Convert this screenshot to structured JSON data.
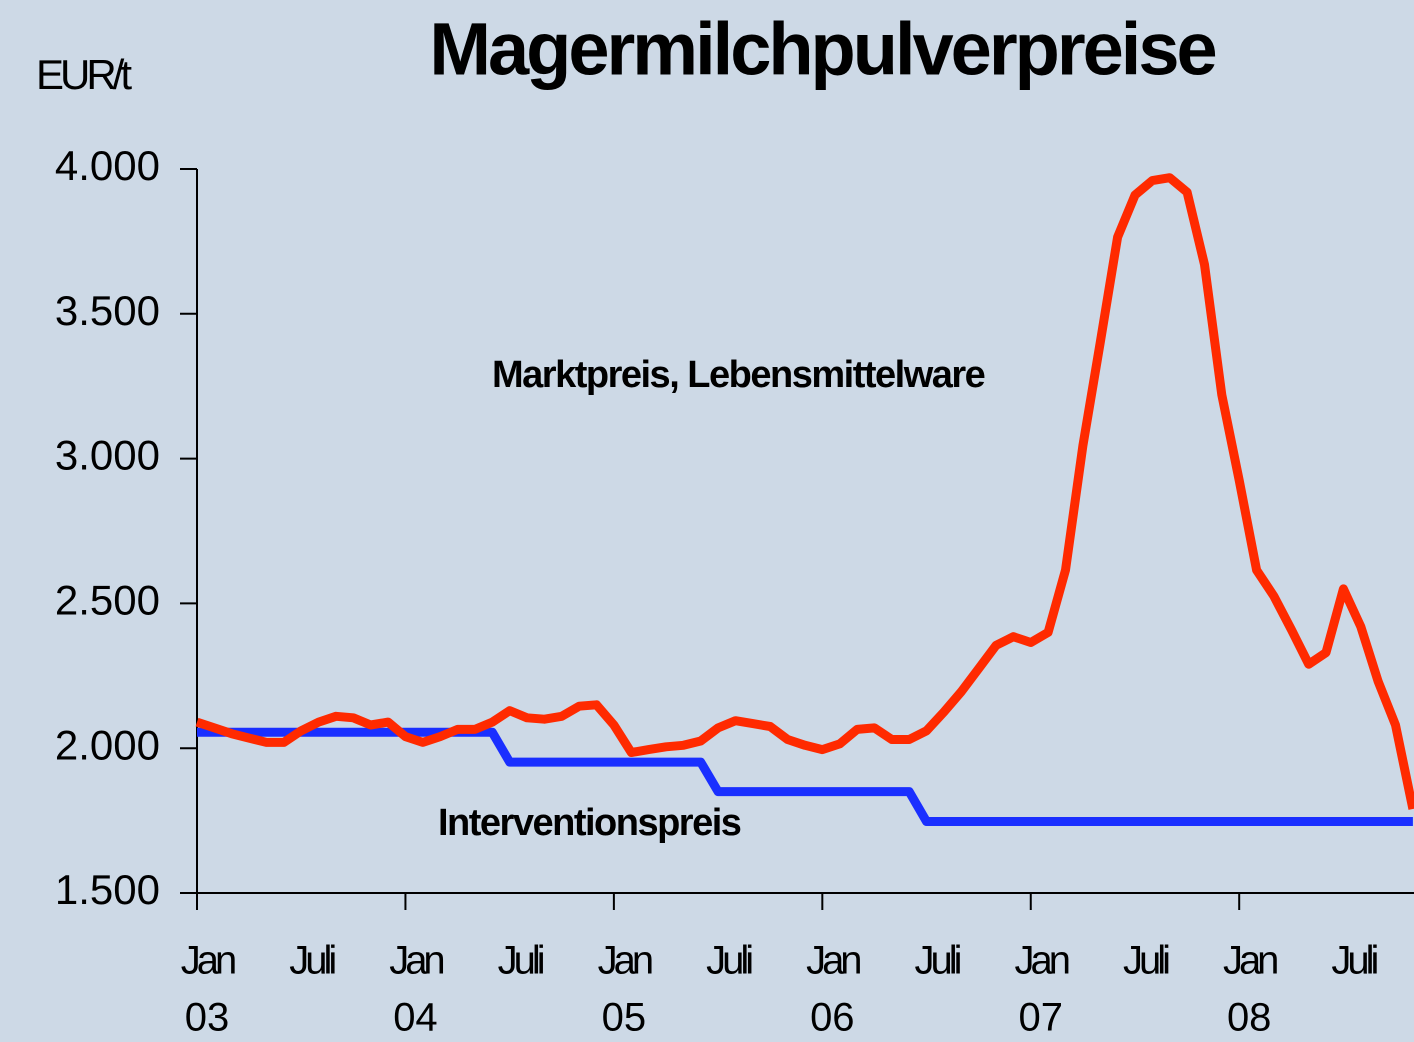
{
  "chart_data": {
    "type": "line",
    "title": "Magermilchpulverpreise",
    "y_unit_label": "EUR/t",
    "categories": [
      "Jan",
      null,
      null,
      null,
      null,
      null,
      "Juli",
      null,
      null,
      null,
      null,
      null,
      "Jan",
      null,
      null,
      null,
      null,
      null,
      "Juli",
      null,
      null,
      null,
      null,
      null,
      "Jan",
      null,
      null,
      null,
      null,
      null,
      "Juli",
      null,
      null,
      null,
      null,
      null,
      "Jan",
      null,
      null,
      null,
      null,
      null,
      "Juli",
      null,
      null,
      null,
      null,
      null,
      "Jan",
      null,
      null,
      null,
      null,
      null,
      "Juli",
      null,
      null,
      null,
      null,
      null,
      "Jan",
      null,
      null,
      null,
      null,
      null,
      "Juli",
      null,
      null,
      null,
      null
    ],
    "category_years": [
      "03",
      null,
      null,
      null,
      null,
      null,
      null,
      null,
      null,
      null,
      null,
      null,
      "04",
      null,
      null,
      null,
      null,
      null,
      null,
      null,
      null,
      null,
      null,
      null,
      "05",
      null,
      null,
      null,
      null,
      null,
      null,
      null,
      null,
      null,
      null,
      null,
      "06",
      null,
      null,
      null,
      null,
      null,
      null,
      null,
      null,
      null,
      null,
      null,
      "07",
      null,
      null,
      null,
      null,
      null,
      null,
      null,
      null,
      null,
      null,
      null,
      "08",
      null,
      null,
      null,
      null,
      null,
      null,
      null,
      null,
      null,
      null
    ],
    "series": [
      {
        "name": "Marktpreis, Lebensmittelware",
        "color": "#ff2a00",
        "values": [
          2090,
          2070,
          2050,
          2035,
          2020,
          2020,
          2060,
          2090,
          2110,
          2105,
          2080,
          2090,
          2040,
          2020,
          2040,
          2065,
          2065,
          2090,
          2130,
          2105,
          2100,
          2110,
          2145,
          2150,
          2080,
          1985,
          1995,
          2005,
          2010,
          2025,
          2070,
          2095,
          2085,
          2075,
          2030,
          2010,
          1995,
          2015,
          2065,
          2070,
          2030,
          2030,
          2060,
          2125,
          2195,
          2275,
          2355,
          2385,
          2365,
          2400,
          2615,
          3045,
          3400,
          3765,
          3910,
          3960,
          3970,
          3920,
          3670,
          3220,
          2925,
          2615,
          2525,
          2410,
          2290,
          2330,
          2550,
          2420,
          2230,
          2080,
          1790
        ]
      },
      {
        "name": "Interventionspreis",
        "color": "#1a2fff",
        "values": [
          2055,
          2055,
          2055,
          2055,
          2055,
          2055,
          2055,
          2055,
          2055,
          2055,
          2055,
          2055,
          2055,
          2055,
          2055,
          2055,
          2055,
          2055,
          1952,
          1952,
          1952,
          1952,
          1952,
          1952,
          1952,
          1952,
          1952,
          1952,
          1952,
          1952,
          1850,
          1850,
          1850,
          1850,
          1850,
          1850,
          1850,
          1850,
          1850,
          1850,
          1850,
          1850,
          1747,
          1747,
          1747,
          1747,
          1747,
          1747,
          1747,
          1747,
          1747,
          1747,
          1747,
          1747,
          1747,
          1747,
          1747,
          1747,
          1747,
          1747,
          1747,
          1747,
          1747,
          1747,
          1747,
          1747,
          1747,
          1747,
          1747,
          1747,
          1747
        ]
      }
    ],
    "ylim": [
      1500,
      4000
    ],
    "yticks": [
      {
        "value": 1500,
        "label": "1.500"
      },
      {
        "value": 2000,
        "label": "2.000"
      },
      {
        "value": 2500,
        "label": "2.500"
      },
      {
        "value": 3000,
        "label": "3.000"
      },
      {
        "value": 3500,
        "label": "3.500"
      },
      {
        "value": 4000,
        "label": "4.000"
      }
    ],
    "grid": false
  }
}
